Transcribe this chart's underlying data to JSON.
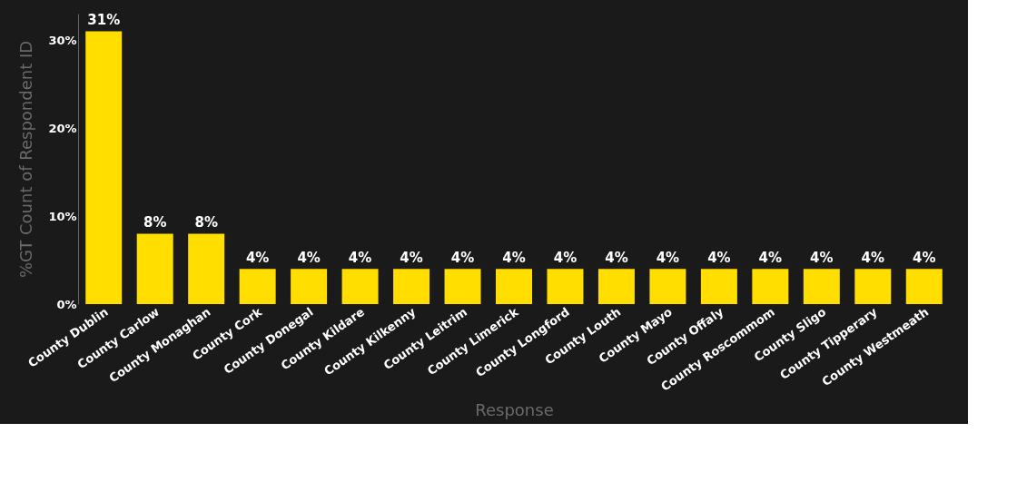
{
  "chart_data": {
    "type": "bar",
    "xlabel": "Response",
    "ylabel": "%GT Count of Respondent ID",
    "categories": [
      "County Dublin",
      "County Carlow",
      "County Monaghan",
      "County Cork",
      "County Donegal",
      "County Kildare",
      "County Kilkenny",
      "County Leitrim",
      "County Limerick",
      "County Longford",
      "County Louth",
      "County Mayo",
      "County Offaly",
      "County Roscommom",
      "County Sligo",
      "County Tipperary",
      "County Westmeath"
    ],
    "values": [
      31,
      8,
      8,
      4,
      4,
      4,
      4,
      4,
      4,
      4,
      4,
      4,
      4,
      4,
      4,
      4,
      4
    ],
    "value_labels": [
      "31%",
      "8%",
      "8%",
      "4%",
      "4%",
      "4%",
      "4%",
      "4%",
      "4%",
      "4%",
      "4%",
      "4%",
      "4%",
      "4%",
      "4%",
      "4%",
      "4%"
    ],
    "color": "#ffde00",
    "ylim": [
      0,
      33
    ],
    "yticks": [
      {
        "value": 0,
        "label": "0%"
      },
      {
        "value": 10,
        "label": "10%"
      },
      {
        "value": 20,
        "label": "20%"
      },
      {
        "value": 30,
        "label": "30%"
      }
    ],
    "grid": false
  }
}
